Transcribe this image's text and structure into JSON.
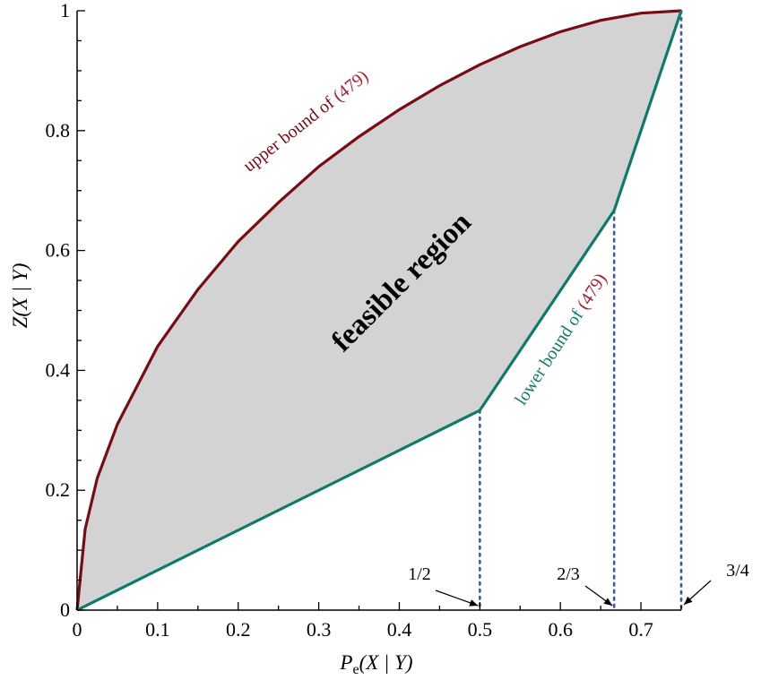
{
  "chart_data": {
    "type": "area",
    "title": "",
    "xlabel": {
      "main": "P",
      "sub": "e",
      "rest": "(X | Y)"
    },
    "ylabel": "Z(X | Y)",
    "xlim": [
      0,
      0.75
    ],
    "ylim": [
      0,
      1
    ],
    "xticks": [
      0,
      0.1,
      0.2,
      0.3,
      0.4,
      0.5,
      0.6,
      0.7
    ],
    "xtick_labels": [
      "0",
      "0.1",
      "0.2",
      "0.3",
      "0.4",
      "0.5",
      "0.6",
      "0.7"
    ],
    "yticks": [
      0,
      0.2,
      0.4,
      0.6,
      0.8,
      1
    ],
    "ytick_labels": [
      "0",
      "0.2",
      "0.4",
      "0.6",
      "0.8",
      "1"
    ],
    "grid": false,
    "colors": {
      "upper": "#7a0a14",
      "lower": "#0e7a6e",
      "fill": "#d3d3d3",
      "dotted": "#3b5aa6",
      "ref": "#b01c2e"
    },
    "series": [
      {
        "key": "upper",
        "x": [
          0,
          0.01,
          0.025,
          0.05,
          0.1,
          0.15,
          0.2,
          0.25,
          0.3,
          0.35,
          0.4,
          0.45,
          0.5,
          0.55,
          0.6,
          0.65,
          0.7,
          0.75
        ],
        "y": [
          0,
          0.135,
          0.22,
          0.31,
          0.44,
          0.535,
          0.615,
          0.68,
          0.74,
          0.79,
          0.835,
          0.875,
          0.91,
          0.94,
          0.965,
          0.984,
          0.996,
          1.0
        ]
      },
      {
        "key": "lower",
        "x": [
          0,
          0.5,
          0.6667,
          0.75
        ],
        "y": [
          0,
          0.3333,
          0.6667,
          1.0
        ]
      }
    ],
    "dotted_lines": [
      {
        "x": 0.5,
        "y": 0.3333
      },
      {
        "x": 0.6667,
        "y": 0.6667
      },
      {
        "x": 0.75,
        "y": 1.0
      }
    ],
    "annotations": {
      "region": "feasible region",
      "upper_text": "upper bound of ",
      "upper_ref": "(479)",
      "lower_text": "lower bound of ",
      "lower_ref": "(479)",
      "markers": [
        "1/2",
        "2/3",
        "3/4"
      ]
    }
  }
}
